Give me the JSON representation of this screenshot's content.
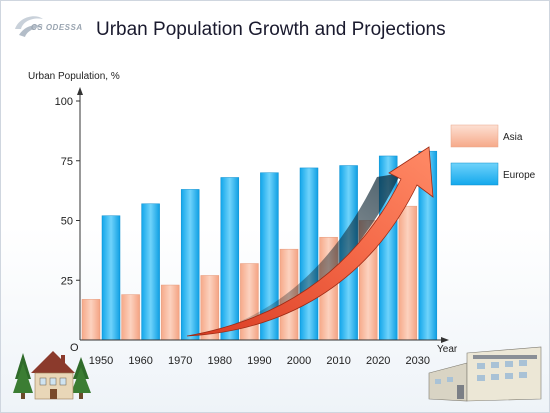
{
  "logo": {
    "text": "CS ODESSA"
  },
  "chart_data": {
    "type": "bar",
    "title": "Urban Population Growth and Projections",
    "ylabel": "Urban Population, %",
    "xlabel": "Year",
    "origin_label": "O",
    "ylim": [
      0,
      100
    ],
    "yticks": [
      25,
      50,
      75,
      100
    ],
    "grid": false,
    "legend_position": "right",
    "categories": [
      "1950",
      "1960",
      "1970",
      "1980",
      "1990",
      "2000",
      "2010",
      "2020",
      "2030"
    ],
    "series": [
      {
        "name": "Asia",
        "color": "#f9b79b",
        "values": [
          17,
          19,
          23,
          27,
          32,
          38,
          43,
          50,
          56
        ]
      },
      {
        "name": "Europe",
        "color": "#27b6f2",
        "values": [
          52,
          57,
          63,
          68,
          70,
          72,
          73,
          77,
          79
        ]
      }
    ],
    "annotations": [
      {
        "type": "growth-arrow",
        "color": "#f25a3c"
      }
    ]
  }
}
